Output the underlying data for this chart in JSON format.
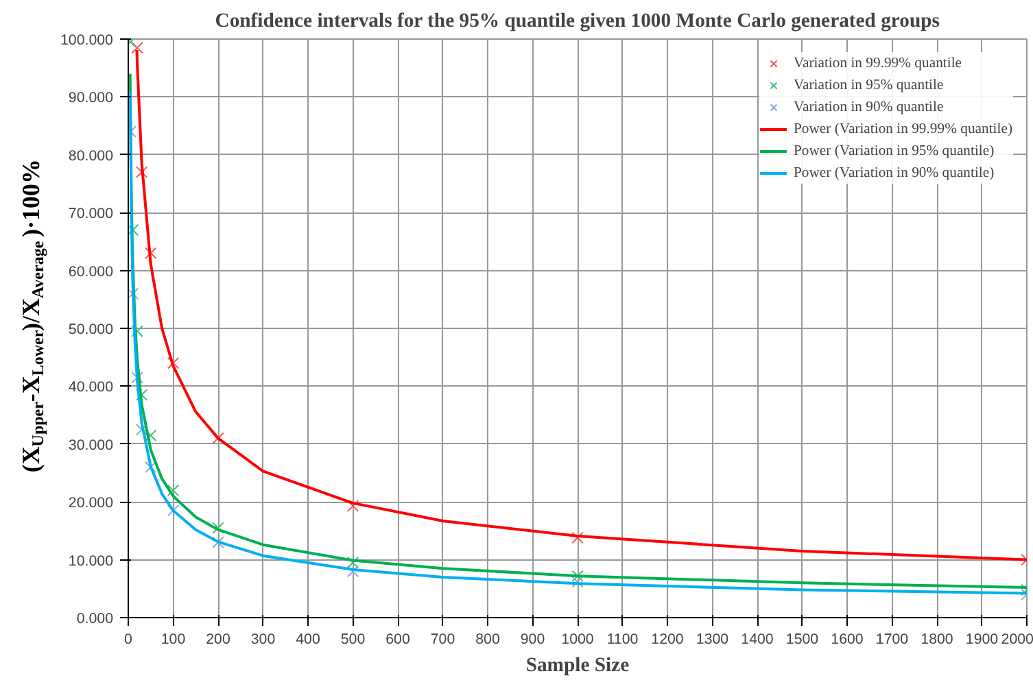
{
  "chart_data": {
    "type": "scatter",
    "title": "Confidence intervals for the 95% quantile given 1000 Monte Carlo generated groups",
    "xlabel": "Sample Size",
    "ylabel": "(X$_{Upper}$-X$_{Lower}$)/X$_{Average}$)·100%",
    "xlim": [
      0,
      2000
    ],
    "ylim": [
      0,
      100
    ],
    "xticks": [
      0,
      100,
      200,
      300,
      400,
      500,
      600,
      700,
      800,
      900,
      1000,
      1100,
      1200,
      1300,
      1400,
      1500,
      1600,
      1700,
      1800,
      1900,
      2000
    ],
    "yticks": [
      {
        "value": 0,
        "label": "0.000"
      },
      {
        "value": 10,
        "label": "10.000"
      },
      {
        "value": 20,
        "label": "20.000"
      },
      {
        "value": 30,
        "label": "30.000"
      },
      {
        "value": 40,
        "label": "40.000"
      },
      {
        "value": 50,
        "label": "50.000"
      },
      {
        "value": 60,
        "label": "60.000"
      },
      {
        "value": 70,
        "label": "70.000"
      },
      {
        "value": 80,
        "label": "80.000"
      },
      {
        "value": 90,
        "label": "90.000"
      },
      {
        "value": 100,
        "label": "100.000"
      }
    ],
    "grid": true,
    "legend": "top right",
    "series": [
      {
        "name": "Variation in 99.99% quantile",
        "type": "scatter",
        "marker": "cross",
        "color": "#ff5050",
        "x": [
          20,
          30,
          50,
          100,
          200,
          500,
          1000,
          2000
        ],
        "values": [
          98.5,
          77,
          63,
          44,
          31,
          19.3,
          13.8,
          10
        ]
      },
      {
        "name": "Variation in 95% quantile",
        "type": "scatter",
        "marker": "cross",
        "color": "#40c070",
        "x": [
          5,
          10,
          20,
          30,
          50,
          100,
          200,
          500,
          1000,
          2000
        ],
        "values": [
          99.5,
          67,
          49.5,
          38.5,
          31.5,
          22,
          15.5,
          9.5,
          7.2,
          4.8
        ]
      },
      {
        "name": "Variation in 90% quantile",
        "type": "scatter",
        "marker": "cross",
        "color": "#8fa8d8",
        "x": [
          5,
          10,
          20,
          30,
          50,
          100,
          200,
          500,
          1000,
          2000
        ],
        "values": [
          84,
          56,
          41.5,
          32.5,
          26,
          18.5,
          13,
          8,
          6.2,
          4
        ]
      },
      {
        "name": "Power (Variation in 99.99% quantile)",
        "type": "line",
        "marker": "none",
        "line_style": "solid",
        "color": "#ff0000",
        "x": [
          19,
          20,
          30,
          50,
          75,
          100,
          150,
          200,
          300,
          500,
          700,
          1000,
          1500,
          2000
        ],
        "values": [
          98.1,
          95.6,
          78.5,
          61.1,
          50.0,
          43.5,
          35.6,
          31.0,
          25.3,
          19.8,
          16.7,
          14.1,
          11.5,
          10.0
        ]
      },
      {
        "name": "Power (Variation in 95% quantile)",
        "type": "line",
        "marker": "none",
        "line_style": "solid",
        "color": "#00b050",
        "x": [
          4,
          7,
          10,
          15,
          20,
          30,
          50,
          75,
          100,
          150,
          200,
          300,
          500,
          700,
          1000,
          1500,
          2000
        ],
        "values": [
          94.0,
          72.4,
          61.5,
          50.9,
          44.5,
          36.8,
          29.0,
          24.0,
          21.0,
          17.4,
          15.2,
          12.6,
          9.9,
          8.5,
          7.2,
          6.0,
          5.2
        ]
      },
      {
        "name": "Power (Variation in 90% quantile)",
        "type": "line",
        "marker": "none",
        "line_style": "solid",
        "color": "#00b0f0",
        "x": [
          4,
          7,
          10,
          15,
          20,
          30,
          50,
          75,
          100,
          150,
          200,
          300,
          500,
          700,
          1000,
          1500,
          2000
        ],
        "values": [
          91.0,
          69.1,
          57.8,
          47.4,
          41.0,
          33.6,
          26.1,
          21.4,
          18.5,
          15.2,
          13.1,
          10.7,
          8.3,
          7.0,
          5.9,
          4.8,
          4.2
        ]
      }
    ]
  }
}
